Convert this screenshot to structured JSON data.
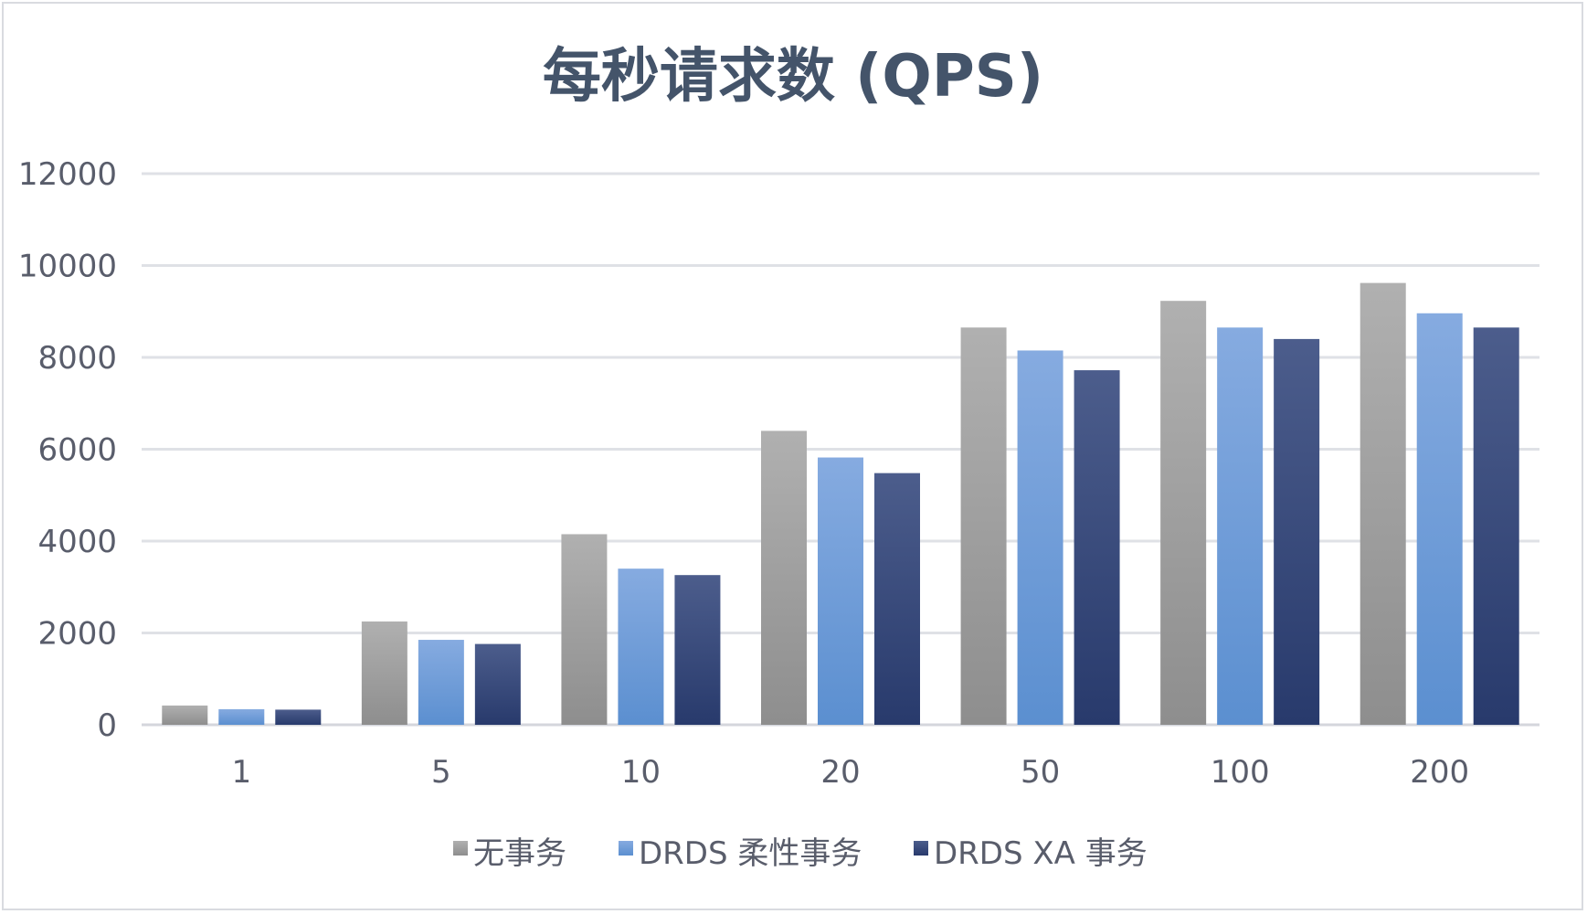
{
  "chart_data": {
    "type": "bar",
    "title": "每秒请求数 (QPS)",
    "xlabel": "",
    "ylabel": "",
    "categories": [
      "1",
      "5",
      "10",
      "20",
      "50",
      "100",
      "200"
    ],
    "series": [
      {
        "name": "无事务",
        "values": [
          420,
          2250,
          4150,
          6400,
          8650,
          9230,
          9620
        ],
        "color": "#a5a5a5"
      },
      {
        "name": "DRDS 柔性事务",
        "values": [
          340,
          1850,
          3400,
          5820,
          8150,
          8650,
          8960
        ],
        "color": "#6f9fd8"
      },
      {
        "name": "DRDS XA 事务",
        "values": [
          330,
          1760,
          3260,
          5480,
          7720,
          8400,
          8650
        ],
        "color": "#2e4172"
      }
    ],
    "ylim": [
      0,
      12000
    ],
    "yticks": [
      0,
      2000,
      4000,
      6000,
      8000,
      10000,
      12000
    ],
    "grid": true,
    "legend_position": "bottom"
  }
}
